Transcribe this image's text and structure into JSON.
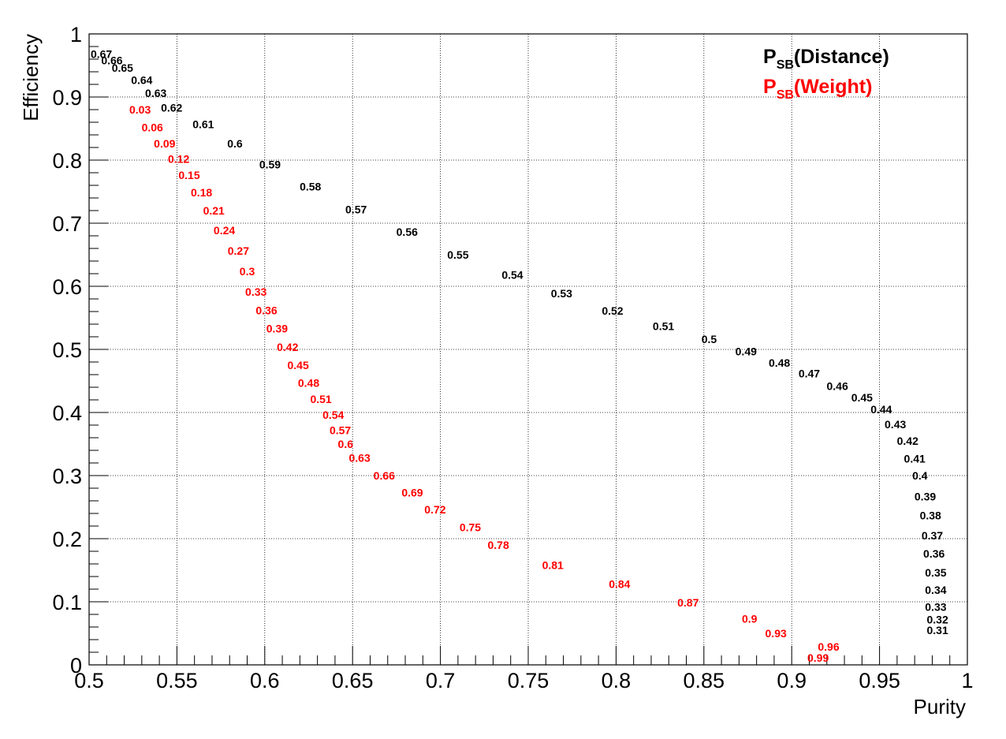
{
  "chart_data": {
    "type": "scatter",
    "xlabel": "Purity",
    "ylabel": "Efficiency",
    "xlim": [
      0.5,
      1.0
    ],
    "ylim": [
      0.0,
      1.0
    ],
    "grid": true,
    "legend_position": "top-right",
    "x_tick_labels": [
      "0.5",
      "0.55",
      "0.6",
      "0.65",
      "0.7",
      "0.75",
      "0.8",
      "0.85",
      "0.9",
      "0.95",
      "1"
    ],
    "x_ticks": [
      0.5,
      0.55,
      0.6,
      0.65,
      0.7,
      0.75,
      0.8,
      0.85,
      0.9,
      0.95,
      1.0
    ],
    "y_tick_labels": [
      "0",
      "0.1",
      "0.2",
      "0.3",
      "0.4",
      "0.5",
      "0.6",
      "0.7",
      "0.8",
      "0.9",
      "1"
    ],
    "y_ticks": [
      0,
      0.1,
      0.2,
      0.3,
      0.4,
      0.5,
      0.6,
      0.7,
      0.8,
      0.9,
      1.0
    ],
    "series": [
      {
        "name": "P_SB(Distance)",
        "legend_main": "P",
        "legend_sub": "SB",
        "legend_rest": "(Distance)",
        "color": "#000000",
        "points": [
          {
            "label": "0.67",
            "x": 0.507,
            "y": 0.968
          },
          {
            "label": "0.66",
            "x": 0.513,
            "y": 0.958
          },
          {
            "label": "0.65",
            "x": 0.519,
            "y": 0.946
          },
          {
            "label": "0.64",
            "x": 0.53,
            "y": 0.927
          },
          {
            "label": "0.63",
            "x": 0.538,
            "y": 0.906
          },
          {
            "label": "0.62",
            "x": 0.547,
            "y": 0.883
          },
          {
            "label": "0.61",
            "x": 0.565,
            "y": 0.857
          },
          {
            "label": "0.6",
            "x": 0.583,
            "y": 0.826
          },
          {
            "label": "0.59",
            "x": 0.603,
            "y": 0.793
          },
          {
            "label": "0.58",
            "x": 0.626,
            "y": 0.758
          },
          {
            "label": "0.57",
            "x": 0.652,
            "y": 0.722
          },
          {
            "label": "0.56",
            "x": 0.681,
            "y": 0.686
          },
          {
            "label": "0.55",
            "x": 0.71,
            "y": 0.65
          },
          {
            "label": "0.54",
            "x": 0.741,
            "y": 0.618
          },
          {
            "label": "0.53",
            "x": 0.769,
            "y": 0.589
          },
          {
            "label": "0.52",
            "x": 0.798,
            "y": 0.561
          },
          {
            "label": "0.51",
            "x": 0.827,
            "y": 0.537
          },
          {
            "label": "0.5",
            "x": 0.853,
            "y": 0.516
          },
          {
            "label": "0.49",
            "x": 0.874,
            "y": 0.497
          },
          {
            "label": "0.48",
            "x": 0.893,
            "y": 0.479
          },
          {
            "label": "0.47",
            "x": 0.91,
            "y": 0.462
          },
          {
            "label": "0.46",
            "x": 0.926,
            "y": 0.442
          },
          {
            "label": "0.45",
            "x": 0.94,
            "y": 0.424
          },
          {
            "label": "0.44",
            "x": 0.951,
            "y": 0.405
          },
          {
            "label": "0.43",
            "x": 0.959,
            "y": 0.381
          },
          {
            "label": "0.42",
            "x": 0.966,
            "y": 0.355
          },
          {
            "label": "0.41",
            "x": 0.97,
            "y": 0.327
          },
          {
            "label": "0.4",
            "x": 0.973,
            "y": 0.3
          },
          {
            "label": "0.39",
            "x": 0.976,
            "y": 0.267
          },
          {
            "label": "0.38",
            "x": 0.979,
            "y": 0.237
          },
          {
            "label": "0.37",
            "x": 0.98,
            "y": 0.205
          },
          {
            "label": "0.36",
            "x": 0.981,
            "y": 0.176
          },
          {
            "label": "0.35",
            "x": 0.982,
            "y": 0.146
          },
          {
            "label": "0.34",
            "x": 0.982,
            "y": 0.119
          },
          {
            "label": "0.33",
            "x": 0.982,
            "y": 0.092
          },
          {
            "label": "0.32",
            "x": 0.983,
            "y": 0.072
          },
          {
            "label": "0.31",
            "x": 0.983,
            "y": 0.055
          }
        ]
      },
      {
        "name": "P_SB(Weight)",
        "legend_main": "P",
        "legend_sub": "SB",
        "legend_rest": "(Weight)",
        "color": "#ff0000",
        "points": [
          {
            "label": "0.03",
            "x": 0.529,
            "y": 0.88
          },
          {
            "label": "0.06",
            "x": 0.536,
            "y": 0.852
          },
          {
            "label": "0.09",
            "x": 0.543,
            "y": 0.826
          },
          {
            "label": "0.12",
            "x": 0.551,
            "y": 0.802
          },
          {
            "label": "0.15",
            "x": 0.557,
            "y": 0.776
          },
          {
            "label": "0.18",
            "x": 0.564,
            "y": 0.749
          },
          {
            "label": "0.21",
            "x": 0.571,
            "y": 0.72
          },
          {
            "label": "0.24",
            "x": 0.577,
            "y": 0.689
          },
          {
            "label": "0.27",
            "x": 0.585,
            "y": 0.656
          },
          {
            "label": "0.3",
            "x": 0.59,
            "y": 0.624
          },
          {
            "label": "0.33",
            "x": 0.595,
            "y": 0.591
          },
          {
            "label": "0.36",
            "x": 0.601,
            "y": 0.562
          },
          {
            "label": "0.39",
            "x": 0.607,
            "y": 0.533
          },
          {
            "label": "0.42",
            "x": 0.613,
            "y": 0.504
          },
          {
            "label": "0.45",
            "x": 0.619,
            "y": 0.475
          },
          {
            "label": "0.48",
            "x": 0.625,
            "y": 0.447
          },
          {
            "label": "0.51",
            "x": 0.632,
            "y": 0.421
          },
          {
            "label": "0.54",
            "x": 0.639,
            "y": 0.396
          },
          {
            "label": "0.57",
            "x": 0.643,
            "y": 0.372
          },
          {
            "label": "0.6",
            "x": 0.646,
            "y": 0.35
          },
          {
            "label": "0.63",
            "x": 0.654,
            "y": 0.328
          },
          {
            "label": "0.66",
            "x": 0.668,
            "y": 0.3
          },
          {
            "label": "0.69",
            "x": 0.684,
            "y": 0.273
          },
          {
            "label": "0.72",
            "x": 0.697,
            "y": 0.246
          },
          {
            "label": "0.75",
            "x": 0.717,
            "y": 0.218
          },
          {
            "label": "0.78",
            "x": 0.733,
            "y": 0.19
          },
          {
            "label": "0.81",
            "x": 0.764,
            "y": 0.158
          },
          {
            "label": "0.84",
            "x": 0.802,
            "y": 0.128
          },
          {
            "label": "0.87",
            "x": 0.841,
            "y": 0.099
          },
          {
            "label": "0.9",
            "x": 0.876,
            "y": 0.073
          },
          {
            "label": "0.93",
            "x": 0.891,
            "y": 0.05
          },
          {
            "label": "0.96",
            "x": 0.921,
            "y": 0.029
          },
          {
            "label": "0.99",
            "x": 0.915,
            "y": 0.011
          }
        ]
      }
    ]
  }
}
